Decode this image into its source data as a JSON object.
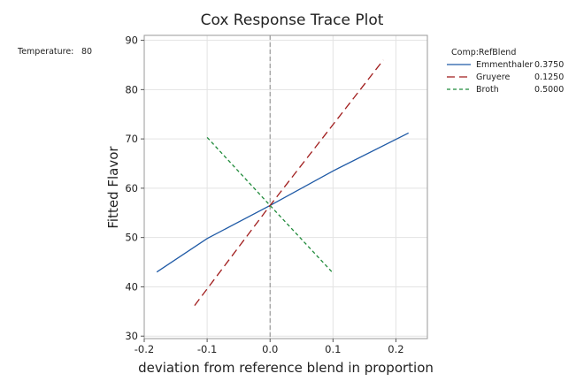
{
  "chart_data": {
    "type": "line",
    "title": "Cox Response Trace Plot",
    "xlabel": "deviation from reference blend in proportion",
    "ylabel": "Fitted Flavor",
    "xlim": [
      -0.2,
      0.25
    ],
    "ylim": [
      29.5,
      91
    ],
    "x_ticks": [
      -0.2,
      -0.1,
      0.0,
      0.1,
      0.2
    ],
    "x_tick_labels": [
      "-0.2",
      "-0.1",
      "0.0",
      "0.1",
      "0.2"
    ],
    "y_ticks": [
      30,
      40,
      50,
      60,
      70,
      80,
      90
    ],
    "y_tick_labels": [
      "30",
      "40",
      "50",
      "60",
      "70",
      "80",
      "90"
    ],
    "grid": true,
    "reference_line_x": 0.0,
    "held_setting": {
      "label": "Temperature:",
      "value": "80"
    },
    "legend": {
      "title": "Comp:RefBlend",
      "placement": "right",
      "entries": [
        {
          "name": "Emmenthaler",
          "ref": "0.3750"
        },
        {
          "name": "Gruyere",
          "ref": "0.1250"
        },
        {
          "name": "Broth",
          "ref": "0.5000"
        }
      ]
    },
    "series": [
      {
        "name": "Emmenthaler",
        "color": "#1f5aa6",
        "dash": "solid",
        "x": [
          -0.18,
          -0.1,
          0.0,
          0.1,
          0.22
        ],
        "y": [
          43.0,
          49.8,
          56.5,
          63.5,
          71.2
        ]
      },
      {
        "name": "Gruyere",
        "color": "#a01c1c",
        "dash": "long-dash",
        "x": [
          -0.12,
          0.0,
          0.18
        ],
        "y": [
          36.2,
          56.5,
          86.0
        ]
      },
      {
        "name": "Broth",
        "color": "#1f8a3a",
        "dash": "short-dash",
        "x": [
          -0.1,
          0.0,
          0.1
        ],
        "y": [
          70.3,
          56.5,
          42.8
        ]
      }
    ]
  }
}
